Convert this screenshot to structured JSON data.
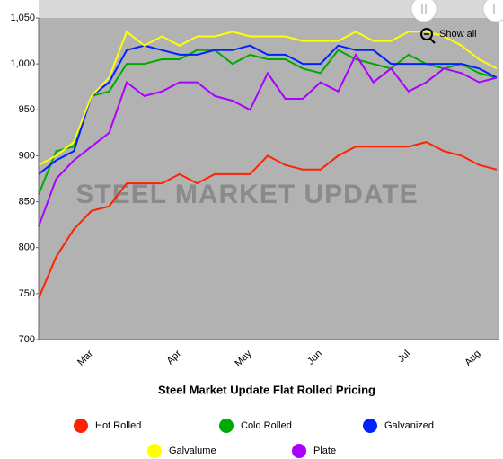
{
  "chart_data": {
    "type": "line",
    "title": "Steel Market Update Flat Rolled Pricing",
    "watermark": "STEEL MARKET UPDATE",
    "button": "Show all",
    "categories": [
      null,
      null,
      null,
      "Mar",
      null,
      null,
      null,
      null,
      "Apr",
      null,
      null,
      null,
      "May",
      null,
      null,
      null,
      "Jun",
      null,
      null,
      null,
      null,
      "Jul",
      null,
      null,
      null,
      "Aug",
      null
    ],
    "series": [
      {
        "name": "Hot Rolled",
        "color": "#ff2200",
        "values": [
          745,
          790,
          820,
          840,
          845,
          870,
          870,
          870,
          880,
          870,
          880,
          880,
          880,
          900,
          890,
          885,
          885,
          900,
          910,
          910,
          910,
          910,
          915,
          905,
          900,
          890,
          885
        ]
      },
      {
        "name": "Cold Rolled",
        "color": "#00aa00",
        "values": [
          858,
          905,
          910,
          965,
          970,
          1000,
          1000,
          1005,
          1005,
          1015,
          1015,
          1000,
          1010,
          1005,
          1005,
          995,
          990,
          1015,
          1005,
          1000,
          995,
          1010,
          1000,
          995,
          1000,
          990,
          985
        ]
      },
      {
        "name": "Galvanized",
        "color": "#0022ff",
        "values": [
          880,
          895,
          905,
          965,
          980,
          1015,
          1020,
          1015,
          1010,
          1010,
          1015,
          1015,
          1020,
          1010,
          1010,
          1000,
          1000,
          1020,
          1015,
          1015,
          1000,
          1000,
          1000,
          1000,
          1000,
          995,
          985
        ]
      },
      {
        "name": "Galvalume",
        "color": "#ffff00",
        "values": [
          890,
          900,
          915,
          965,
          985,
          1035,
          1020,
          1030,
          1020,
          1030,
          1030,
          1035,
          1030,
          1030,
          1030,
          1025,
          1025,
          1025,
          1035,
          1025,
          1025,
          1035,
          1035,
          1030,
          1020,
          1005,
          995
        ]
      },
      {
        "name": "Plate",
        "color": "#aa00ff",
        "values": [
          823,
          875,
          895,
          910,
          925,
          980,
          965,
          970,
          980,
          980,
          965,
          960,
          950,
          990,
          962,
          962,
          980,
          970,
          1010,
          980,
          995,
          970,
          980,
          995,
          990,
          980,
          985
        ]
      }
    ],
    "ylim": [
      700,
      1050
    ],
    "yticks": [
      700,
      750,
      800,
      850,
      900,
      950,
      {
        "value": 1000,
        "label": "1,000"
      },
      {
        "value": 1050,
        "label": "1,050"
      }
    ],
    "grid": false
  }
}
